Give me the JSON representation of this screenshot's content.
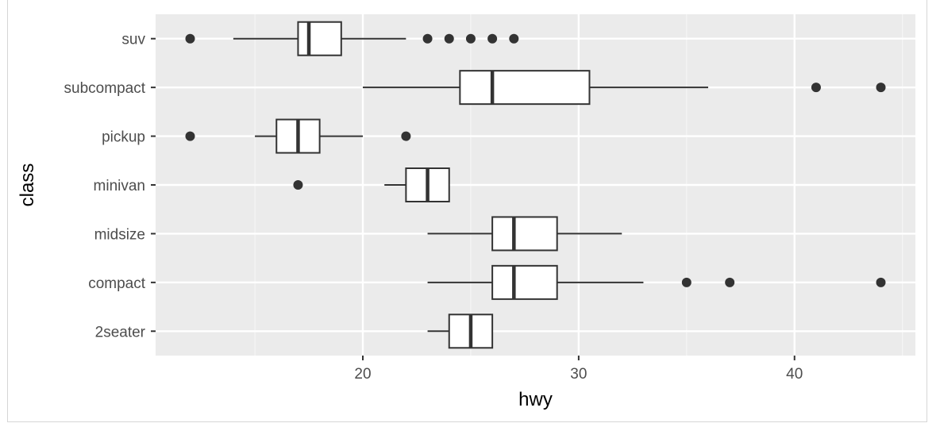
{
  "chart_data": {
    "type": "boxplot",
    "orientation": "horizontal",
    "xlabel": "hwy",
    "ylabel": "class",
    "xlim": [
      10.4,
      45.6
    ],
    "x_ticks": [
      20,
      30,
      40
    ],
    "x_tick_labels": [
      "20",
      "30",
      "40"
    ],
    "grid": true,
    "categories": [
      "2seater",
      "compact",
      "midsize",
      "minivan",
      "pickup",
      "subcompact",
      "suv"
    ],
    "boxes": [
      {
        "category": "2seater",
        "whisker_low": 23,
        "q1": 24,
        "median": 25,
        "q3": 26,
        "whisker_high": 26,
        "outliers": []
      },
      {
        "category": "compact",
        "whisker_low": 23,
        "q1": 26,
        "median": 27,
        "q3": 29,
        "whisker_high": 33,
        "outliers": [
          35,
          37,
          44
        ]
      },
      {
        "category": "midsize",
        "whisker_low": 23,
        "q1": 26,
        "median": 27,
        "q3": 29,
        "whisker_high": 32,
        "outliers": []
      },
      {
        "category": "minivan",
        "whisker_low": 21,
        "q1": 22,
        "median": 23,
        "q3": 24,
        "whisker_high": 24,
        "outliers": [
          17
        ]
      },
      {
        "category": "pickup",
        "whisker_low": 15,
        "q1": 16,
        "median": 17,
        "q3": 18,
        "whisker_high": 20,
        "outliers": [
          12,
          22
        ]
      },
      {
        "category": "subcompact",
        "whisker_low": 20,
        "q1": 24.5,
        "median": 26,
        "q3": 30.5,
        "whisker_high": 36,
        "outliers": [
          41,
          44
        ]
      },
      {
        "category": "suv",
        "whisker_low": 14,
        "q1": 17,
        "median": 17.5,
        "q3": 19,
        "whisker_high": 22,
        "outliers": [
          12,
          23,
          24,
          25,
          26,
          27
        ]
      }
    ],
    "colors": {
      "panel_background": "#ebebeb",
      "grid_major": "#ffffff",
      "grid_minor": "#f5f5f5",
      "box_fill": "#ffffff",
      "box_line": "#333333",
      "point": "#333333"
    }
  }
}
